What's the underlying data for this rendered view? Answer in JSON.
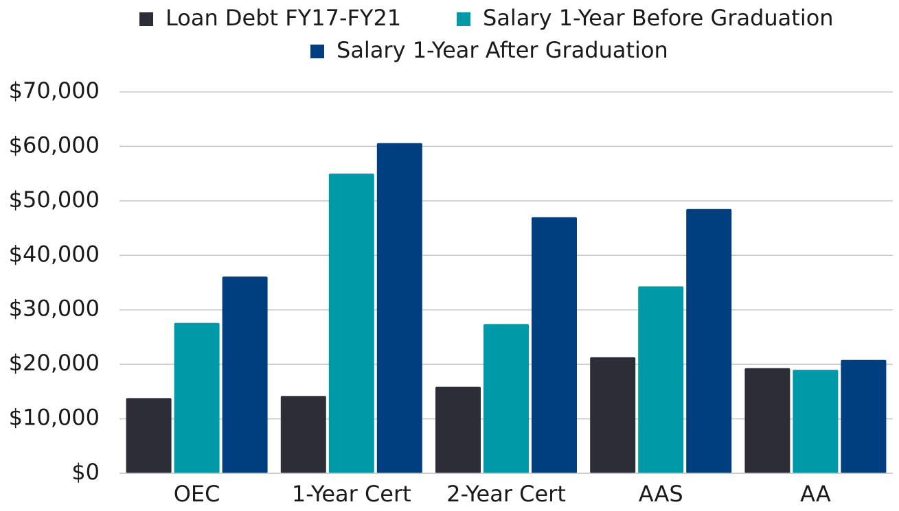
{
  "chart_data": {
    "type": "bar",
    "categories": [
      "OEC",
      "1-Year Cert",
      "2-Year Cert",
      "AAS",
      "AA"
    ],
    "series": [
      {
        "name": "Loan Debt FY17-FY21",
        "color": "#2d2d37",
        "values": [
          13800,
          14200,
          15900,
          21300,
          19300
        ]
      },
      {
        "name": "Salary 1-Year Before Graduation",
        "color": "#0099a8",
        "values": [
          27600,
          55000,
          27400,
          34300,
          19000
        ]
      },
      {
        "name": "Salary 1-Year After Graduation",
        "color": "#003f7f",
        "values": [
          36100,
          60600,
          47000,
          48500,
          20800
        ]
      }
    ],
    "ylim": [
      0,
      70000
    ],
    "yticks": [
      {
        "value": 0,
        "label": "$0"
      },
      {
        "value": 10000,
        "label": "$10,000"
      },
      {
        "value": 20000,
        "label": "$20,000"
      },
      {
        "value": 30000,
        "label": "$30,000"
      },
      {
        "value": 40000,
        "label": "$40,000"
      },
      {
        "value": 50000,
        "label": "$50,000"
      },
      {
        "value": 60000,
        "label": "$60,000"
      },
      {
        "value": 70000,
        "label": "$70,000"
      }
    ],
    "grid": true,
    "legend": "top"
  }
}
